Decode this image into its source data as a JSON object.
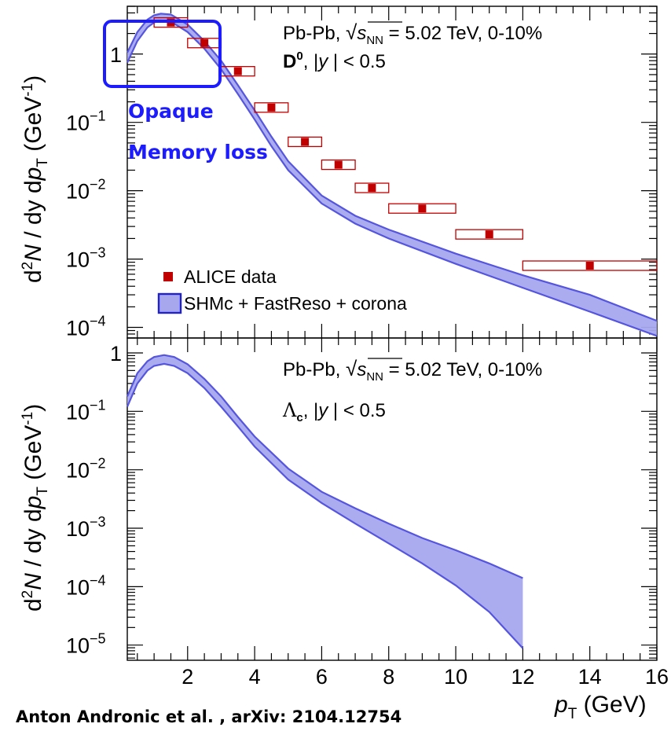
{
  "figure": {
    "credit": "Anton Andronic et al. , arXiv: 2104.12754",
    "highlight_labels": [
      "Opaque",
      "Memory loss"
    ],
    "highlight_color": "#1c1cff"
  },
  "chart_data": [
    {
      "type": "scatter",
      "panel": "top",
      "annotation_line1": "Pb-Pb, √s_NN = 5.02 TeV, 0-10%",
      "annotation_line2": "D⁰, |y| < 0.5",
      "xlabel": "",
      "ylabel": "d²N / dy dp_T (GeV⁻¹)",
      "ylabel_parts": {
        "main": "d²N / dy dp",
        "sub": "T",
        "unit": " (GeV",
        "sup": "-1",
        "close": ")"
      },
      "x_range": [
        0.2,
        16
      ],
      "y_log": true,
      "y_range": [
        7e-05,
        5
      ],
      "y_ticks": [
        {
          "v": 1,
          "label": "1"
        },
        {
          "v": 0.1,
          "label": "10",
          "exp": "−1"
        },
        {
          "v": 0.01,
          "label": "10",
          "exp": "−2"
        },
        {
          "v": 0.001,
          "label": "10",
          "exp": "−3"
        },
        {
          "v": 0.0001,
          "label": "10",
          "exp": "−4"
        }
      ],
      "legend": {
        "placement": "bottom-left",
        "entries": [
          "ALICE data",
          "SHMc + FastReso + corona"
        ]
      },
      "series": [
        {
          "name": "ALICE data",
          "color": "#c00000",
          "points": [
            {
              "x": 1.5,
              "y": 2.9,
              "xerr": 0.5
            },
            {
              "x": 2.5,
              "y": 1.45,
              "xerr": 0.5
            },
            {
              "x": 3.5,
              "y": 0.56,
              "xerr": 0.5
            },
            {
              "x": 4.5,
              "y": 0.165,
              "xerr": 0.5
            },
            {
              "x": 5.5,
              "y": 0.052,
              "xerr": 0.5
            },
            {
              "x": 6.5,
              "y": 0.024,
              "xerr": 0.5
            },
            {
              "x": 7.5,
              "y": 0.011,
              "xerr": 0.5
            },
            {
              "x": 9,
              "y": 0.0055,
              "xerr": 1
            },
            {
              "x": 11,
              "y": 0.0023,
              "xerr": 1
            },
            {
              "x": 14,
              "y": 0.0008,
              "xerr": 2
            }
          ]
        },
        {
          "name": "SHMc + FastReso + corona",
          "color": "#5555dd",
          "band": [
            {
              "x": 0.2,
              "lo": 0.75,
              "hi": 1.05
            },
            {
              "x": 0.5,
              "lo": 1.55,
              "hi": 2.1
            },
            {
              "x": 0.8,
              "lo": 2.45,
              "hi": 3.2
            },
            {
              "x": 1.0,
              "lo": 2.9,
              "hi": 3.7
            },
            {
              "x": 1.2,
              "lo": 3.1,
              "hi": 3.9
            },
            {
              "x": 1.5,
              "lo": 3.0,
              "hi": 3.8
            },
            {
              "x": 2.0,
              "lo": 2.1,
              "hi": 2.7
            },
            {
              "x": 2.5,
              "lo": 1.2,
              "hi": 1.55
            },
            {
              "x": 3.0,
              "lo": 0.6,
              "hi": 0.8
            },
            {
              "x": 3.5,
              "lo": 0.26,
              "hi": 0.35
            },
            {
              "x": 4.0,
              "lo": 0.11,
              "hi": 0.15
            },
            {
              "x": 4.5,
              "lo": 0.045,
              "hi": 0.062
            },
            {
              "x": 5.0,
              "lo": 0.02,
              "hi": 0.027
            },
            {
              "x": 6.0,
              "lo": 0.0065,
              "hi": 0.0085
            },
            {
              "x": 7.0,
              "lo": 0.0033,
              "hi": 0.0043
            },
            {
              "x": 8.0,
              "lo": 0.002,
              "hi": 0.0027
            },
            {
              "x": 10.0,
              "lo": 0.00085,
              "hi": 0.0012
            },
            {
              "x": 12.0,
              "lo": 0.00038,
              "hi": 0.00058
            },
            {
              "x": 14.0,
              "lo": 0.00017,
              "hi": 0.0003
            },
            {
              "x": 16.0,
              "lo": 7.5e-05,
              "hi": 0.000125
            }
          ]
        }
      ]
    },
    {
      "type": "area",
      "panel": "bottom",
      "annotation_line1": "Pb-Pb, √s_NN = 5.02 TeV, 0-10%",
      "annotation_line2": "Λc, |y| < 0.5",
      "xlabel": "p_T (GeV)",
      "xlabel_parts": {
        "main": "p",
        "sub": "T",
        "unit": " (GeV)"
      },
      "ylabel": "d²N / dy dp_T (GeV⁻¹)",
      "x_range": [
        0.2,
        16
      ],
      "x_ticks": [
        2,
        4,
        6,
        8,
        10,
        12,
        14,
        16
      ],
      "y_log": true,
      "y_range": [
        5.5e-06,
        1.8
      ],
      "y_ticks": [
        {
          "v": 1,
          "label": "1"
        },
        {
          "v": 0.1,
          "label": "10",
          "exp": "−1"
        },
        {
          "v": 0.01,
          "label": "10",
          "exp": "−2"
        },
        {
          "v": 0.001,
          "label": "10",
          "exp": "−3"
        },
        {
          "v": 0.0001,
          "label": "10",
          "exp": "−4"
        },
        {
          "v": 1e-05,
          "label": "10",
          "exp": "−5"
        }
      ],
      "series": [
        {
          "color": "#5555dd",
          "band": [
            {
              "x": 0.2,
              "lo": 0.12,
              "hi": 0.18
            },
            {
              "x": 0.5,
              "lo": 0.3,
              "hi": 0.45
            },
            {
              "x": 0.8,
              "lo": 0.5,
              "hi": 0.72
            },
            {
              "x": 1.0,
              "lo": 0.6,
              "hi": 0.85
            },
            {
              "x": 1.3,
              "lo": 0.65,
              "hi": 0.92
            },
            {
              "x": 1.6,
              "lo": 0.6,
              "hi": 0.85
            },
            {
              "x": 2.0,
              "lo": 0.45,
              "hi": 0.64
            },
            {
              "x": 2.5,
              "lo": 0.25,
              "hi": 0.36
            },
            {
              "x": 3.0,
              "lo": 0.12,
              "hi": 0.18
            },
            {
              "x": 3.5,
              "lo": 0.055,
              "hi": 0.08
            },
            {
              "x": 4.0,
              "lo": 0.025,
              "hi": 0.037
            },
            {
              "x": 5.0,
              "lo": 0.0068,
              "hi": 0.0105
            },
            {
              "x": 6.0,
              "lo": 0.0027,
              "hi": 0.0042
            },
            {
              "x": 7.0,
              "lo": 0.0012,
              "hi": 0.0022
            },
            {
              "x": 8.0,
              "lo": 0.00055,
              "hi": 0.0012
            },
            {
              "x": 9.0,
              "lo": 0.00025,
              "hi": 0.00068
            },
            {
              "x": 10.0,
              "lo": 0.000105,
              "hi": 0.00042
            },
            {
              "x": 11.0,
              "lo": 3.7e-05,
              "hi": 0.00025
            },
            {
              "x": 12.0,
              "lo": 8.8e-06,
              "hi": 0.00014
            }
          ]
        }
      ]
    }
  ]
}
